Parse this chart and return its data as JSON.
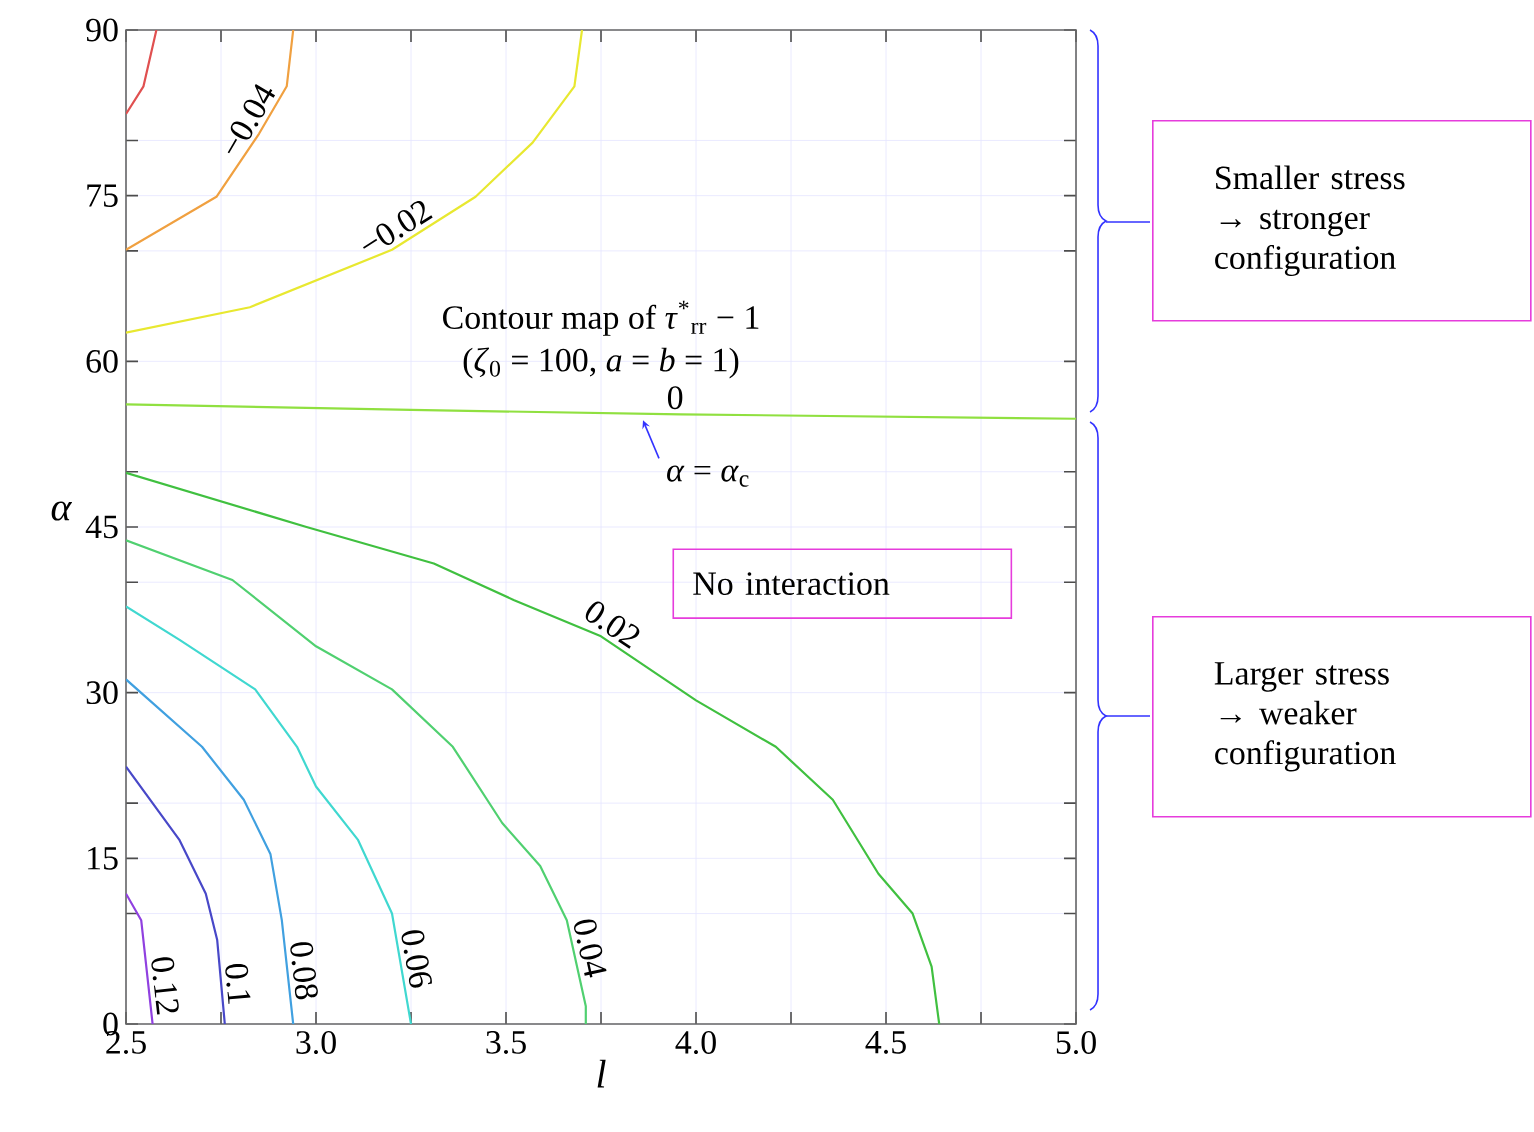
{
  "chart_data": {
    "type": "line",
    "xlabel": "l",
    "ylabel": "α",
    "xlim": [
      2.5,
      5.0
    ],
    "ylim": [
      0,
      90
    ],
    "xticks": [
      2.5,
      {
        "value": 2.75,
        "label": null
      },
      {
        "value": 3,
        "label": "3.0"
      },
      {
        "value": 3.25,
        "label": null
      },
      3.5,
      {
        "value": 3.75,
        "label": null
      },
      {
        "value": 4,
        "label": "4.0"
      },
      {
        "value": 4.25,
        "label": null
      },
      4.5,
      {
        "value": 4.75,
        "label": null
      },
      {
        "value": 5,
        "label": "5.0"
      }
    ],
    "yticks": [
      0,
      {
        "value": 10,
        "label": null
      },
      15,
      {
        "value": 20,
        "label": null
      },
      30,
      {
        "value": 40,
        "label": null
      },
      45,
      {
        "value": 50,
        "label": null
      },
      60,
      {
        "value": 70,
        "label": null
      },
      75,
      {
        "value": 80,
        "label": null
      },
      90
    ],
    "grid": true,
    "series": [
      {
        "color": "#e05050",
        "x": [
          2.5,
          2.546,
          2.58
        ],
        "values": [
          82.4,
          84.9,
          90
        ]
      },
      {
        "name": "−0.04",
        "color": "#f0a040",
        "x": [
          2.5,
          2.738,
          2.85,
          2.923,
          2.94
        ],
        "values": [
          70.1,
          74.9,
          80.6,
          84.9,
          90
        ]
      },
      {
        "name": "−0.02",
        "color": "#e8e830",
        "x": [
          2.5,
          2.826,
          3.2,
          3.42,
          3.57,
          3.68,
          3.7
        ],
        "values": [
          62.6,
          64.9,
          70.1,
          74.9,
          79.8,
          84.9,
          90
        ]
      },
      {
        "name": "0",
        "color": "#90e040",
        "x": [
          2.5,
          3.25,
          3.96,
          5.0
        ],
        "values": [
          56.1,
          55.6,
          55.2,
          54.8
        ]
      },
      {
        "name": "0.02",
        "color": "#40c040",
        "x": [
          2.5,
          2.975,
          3.31,
          3.52,
          3.75,
          4.0,
          4.21,
          4.36,
          4.48,
          4.57,
          4.62,
          4.64
        ],
        "values": [
          49.9,
          45.0,
          41.7,
          38.4,
          35.1,
          29.3,
          25.1,
          20.3,
          13.6,
          10.0,
          5.2,
          0
        ]
      },
      {
        "name": "0.04",
        "color": "#50d070",
        "x": [
          2.5,
          2.78,
          3.0,
          3.2,
          3.36,
          3.49,
          3.59,
          3.66,
          3.71,
          3.71
        ],
        "values": [
          43.8,
          40.2,
          34.2,
          30.3,
          25.1,
          18.2,
          14.3,
          9.4,
          1.6,
          0
        ]
      },
      {
        "name": "0.06",
        "color": "#40d8d0",
        "x": [
          2.5,
          2.64,
          2.84,
          2.95,
          3.0,
          3.11,
          3.2,
          3.25
        ],
        "values": [
          37.8,
          34.8,
          30.3,
          25.1,
          21.5,
          16.7,
          10.0,
          0
        ]
      },
      {
        "name": "0.08",
        "color": "#40a0e0",
        "x": [
          2.5,
          2.7,
          2.81,
          2.88,
          2.91,
          2.94
        ],
        "values": [
          31.2,
          25.1,
          20.3,
          15.4,
          9.4,
          0
        ]
      },
      {
        "name": "0.1",
        "color": "#4848c8",
        "x": [
          2.5,
          2.64,
          2.71,
          2.74,
          2.76
        ],
        "values": [
          23.3,
          16.7,
          11.8,
          7.6,
          0
        ]
      },
      {
        "name": "0.12",
        "color": "#9040e0",
        "x": [
          2.5,
          2.54,
          2.57
        ],
        "values": [
          11.8,
          9.4,
          0
        ]
      }
    ],
    "annotations": [
      "Contour map of *τ*$^{*}$$_{rr}$ − 1",
      "(*ζ*$_{0}$ = 100, *a* = *b* = 1)",
      {
        "text": "*α* = *α*$_{c}$",
        "x": 3.85,
        "y": 55.2
      },
      "No interaction",
      "Smaller stress → stronger configuration",
      "Larger stress → weaker configuration"
    ]
  }
}
